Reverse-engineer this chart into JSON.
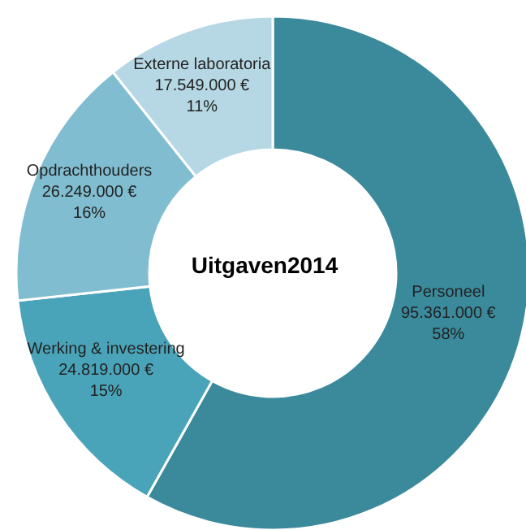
{
  "chart_data": {
    "type": "donut",
    "title": "Uitgaven2014",
    "categories": [
      "Personeel",
      "Werking & investering",
      "Opdrachthouders",
      "Externe laboratoria"
    ],
    "values": [
      95361000,
      24819000,
      26249000,
      17549000
    ],
    "value_labels": [
      "95.361.000 €\n58%",
      "24.819.000 €\n15%",
      "26.249.000 €\n16%",
      "17.549.000 €\n11%"
    ],
    "colors": [
      "#3b8a9c",
      "#4aa4b9",
      "#80bdd1",
      "#b6d7e4"
    ]
  }
}
